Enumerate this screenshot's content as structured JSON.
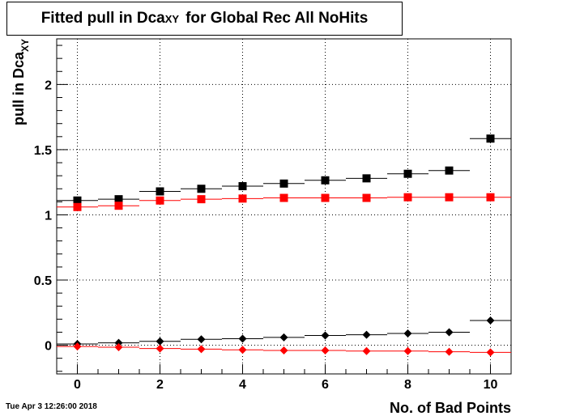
{
  "title": {
    "main": "Fitted pull in Dca",
    "sub": "XY",
    "rest": "for Global Rec All NoHits"
  },
  "timestamp": "Tue Apr  3 12:26:00 2018",
  "chart_data": {
    "type": "scatter",
    "xlabel": "No. of Bad Points",
    "ylabel": {
      "main": "pull in Dca",
      "sub": "XY"
    },
    "xlim": [
      -0.5,
      10.5
    ],
    "ylim": [
      -0.22,
      2.35
    ],
    "xticks": [
      "0",
      "2",
      "4",
      "6",
      "8",
      "10"
    ],
    "yticks": [
      "0",
      "0.5",
      "1",
      "1.5",
      "2"
    ],
    "grid": true,
    "series": [
      {
        "marker": "square",
        "color": "#000000",
        "x": [
          0,
          1,
          2,
          3,
          4,
          5,
          6,
          7,
          8,
          9,
          10
        ],
        "y": [
          1.11,
          1.12,
          1.18,
          1.2,
          1.22,
          1.24,
          1.265,
          1.28,
          1.315,
          1.34,
          1.585
        ]
      },
      {
        "marker": "square",
        "color": "#ff0000",
        "x": [
          0,
          1,
          2,
          3,
          4,
          5,
          6,
          7,
          8,
          9,
          10
        ],
        "y": [
          1.06,
          1.07,
          1.11,
          1.12,
          1.125,
          1.13,
          1.13,
          1.13,
          1.135,
          1.135,
          1.135
        ]
      },
      {
        "marker": "diamond",
        "color": "#000000",
        "x": [
          0,
          1,
          2,
          3,
          4,
          5,
          6,
          7,
          8,
          9,
          10
        ],
        "y": [
          0.01,
          0.018,
          0.03,
          0.045,
          0.05,
          0.06,
          0.075,
          0.08,
          0.09,
          0.1,
          0.19
        ]
      },
      {
        "marker": "diamond",
        "color": "#ff0000",
        "x": [
          0,
          1,
          2,
          3,
          4,
          5,
          6,
          7,
          8,
          9,
          10
        ],
        "y": [
          -0.01,
          -0.015,
          -0.025,
          -0.03,
          -0.035,
          -0.04,
          -0.04,
          -0.045,
          -0.045,
          -0.05,
          -0.055
        ]
      }
    ]
  }
}
